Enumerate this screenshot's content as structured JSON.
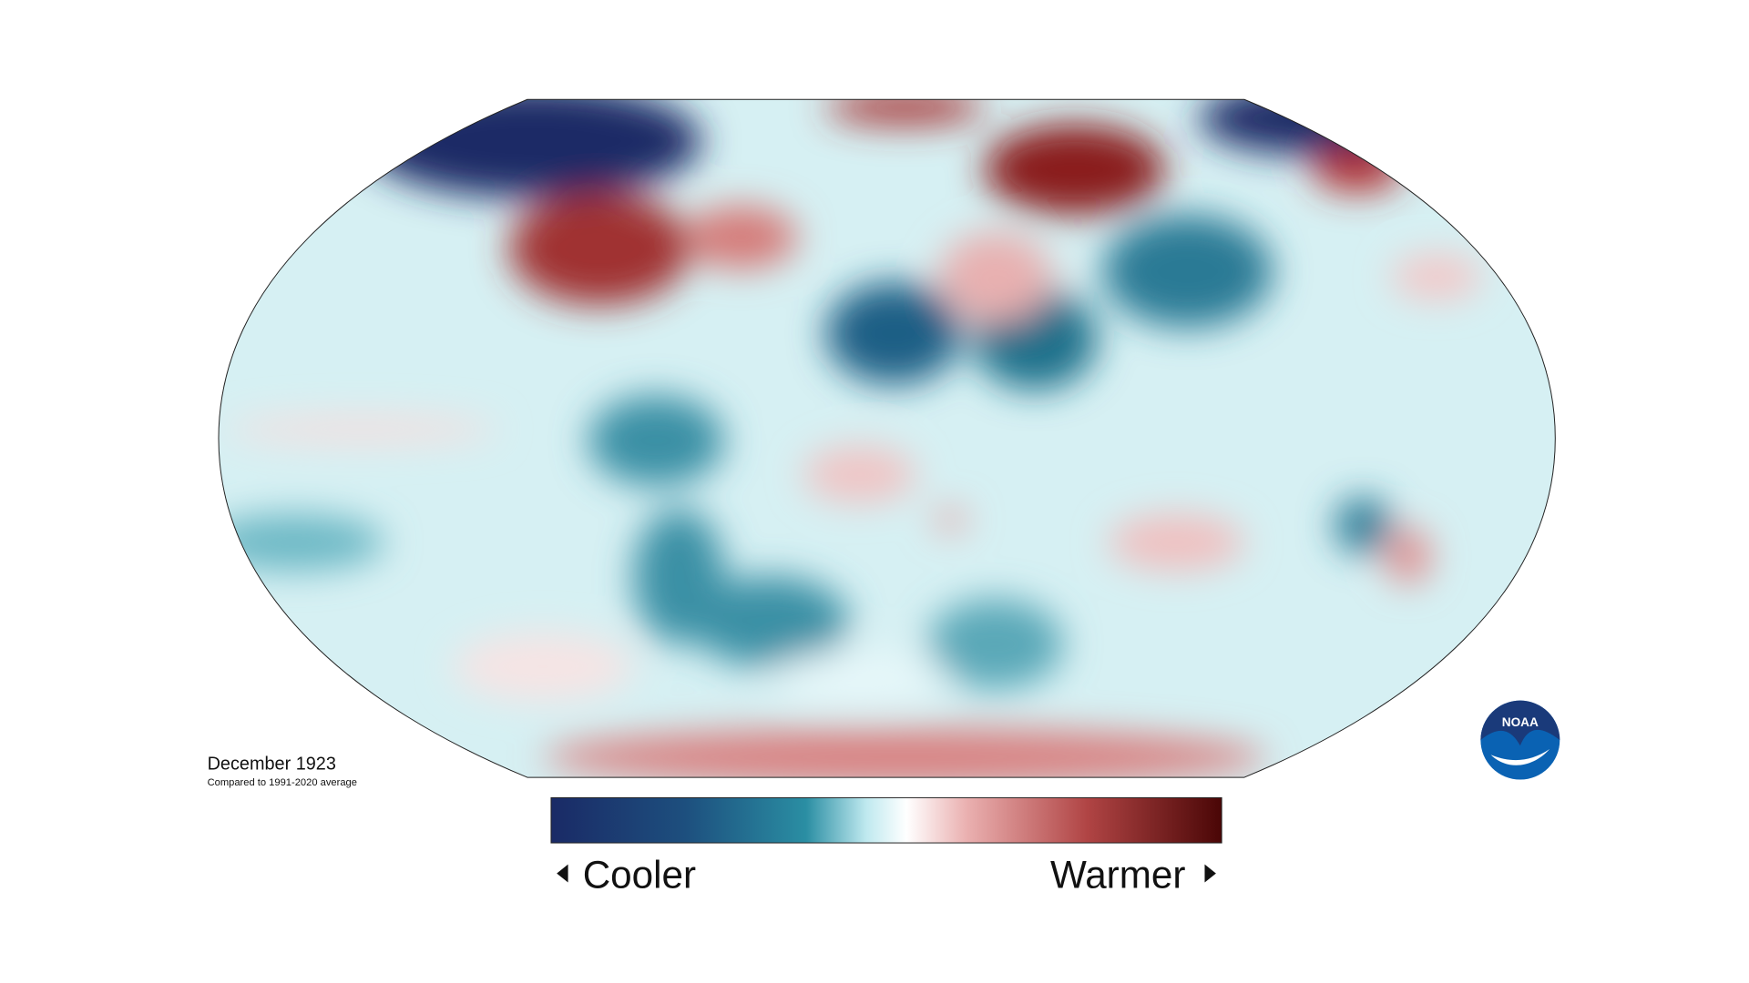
{
  "header": {
    "title": "December 1923",
    "subtitle": "Compared to 1991-2020 average"
  },
  "legend": {
    "low_label": "Cooler",
    "high_label": "Warmer"
  },
  "logo": {
    "text": "NOAA"
  }
}
